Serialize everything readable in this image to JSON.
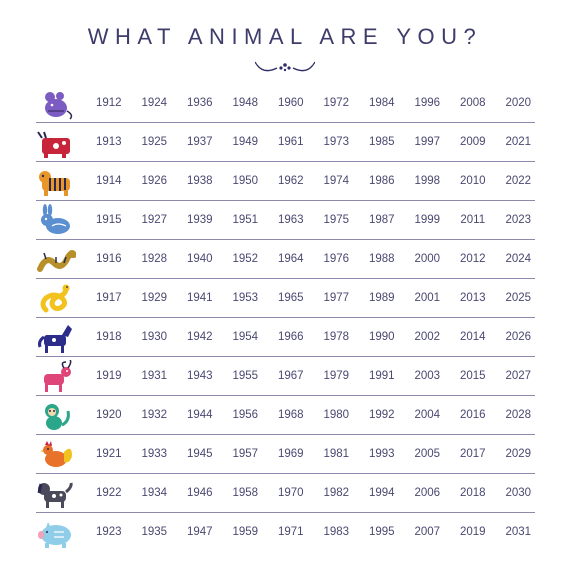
{
  "title": "WHAT ANIMAL ARE YOU?",
  "colors": {
    "title": "#3e3c6a",
    "text": "#4a4870",
    "divider": "#8c8aa8",
    "ornament": "#2f2d68"
  },
  "rows": [
    {
      "animal": "rat-icon",
      "color": "#7c5cc2",
      "years": [
        "1912",
        "1924",
        "1936",
        "1948",
        "1960",
        "1972",
        "1984",
        "1996",
        "2008",
        "2020"
      ]
    },
    {
      "animal": "ox-icon",
      "color": "#c8243a",
      "years": [
        "1913",
        "1925",
        "1937",
        "1949",
        "1961",
        "1973",
        "1985",
        "1997",
        "2009",
        "2021"
      ]
    },
    {
      "animal": "tiger-icon",
      "color": "#e8962a",
      "years": [
        "1914",
        "1926",
        "1938",
        "1950",
        "1962",
        "1974",
        "1986",
        "1998",
        "2010",
        "2022"
      ]
    },
    {
      "animal": "rabbit-icon",
      "color": "#5b8fd0",
      "years": [
        "1915",
        "1927",
        "1939",
        "1951",
        "1963",
        "1975",
        "1987",
        "1999",
        "2011",
        "2023"
      ]
    },
    {
      "animal": "dragon-icon",
      "color": "#b8902a",
      "years": [
        "1916",
        "1928",
        "1940",
        "1952",
        "1964",
        "1976",
        "1988",
        "2000",
        "2012",
        "2024"
      ]
    },
    {
      "animal": "snake-icon",
      "color": "#f2c21e",
      "years": [
        "1917",
        "1929",
        "1941",
        "1953",
        "1965",
        "1977",
        "1989",
        "2001",
        "2013",
        "2025"
      ]
    },
    {
      "animal": "horse-icon",
      "color": "#2c2c8a",
      "years": [
        "1918",
        "1930",
        "1942",
        "1954",
        "1966",
        "1978",
        "1990",
        "2002",
        "2014",
        "2026"
      ]
    },
    {
      "animal": "goat-icon",
      "color": "#e0457a",
      "years": [
        "1919",
        "1931",
        "1943",
        "1955",
        "1967",
        "1979",
        "1991",
        "2003",
        "2015",
        "2027"
      ]
    },
    {
      "animal": "monkey-icon",
      "color": "#2aa68a",
      "years": [
        "1920",
        "1932",
        "1944",
        "1956",
        "1968",
        "1980",
        "1992",
        "2004",
        "2016",
        "2028"
      ]
    },
    {
      "animal": "rooster-icon",
      "color": "#e8722a",
      "years": [
        "1921",
        "1933",
        "1945",
        "1957",
        "1969",
        "1981",
        "1993",
        "2005",
        "2017",
        "2029"
      ]
    },
    {
      "animal": "dog-icon",
      "color": "#4a4a5a",
      "years": [
        "1922",
        "1934",
        "1946",
        "1958",
        "1970",
        "1982",
        "1994",
        "2006",
        "2018",
        "2030"
      ]
    },
    {
      "animal": "pig-icon",
      "color": "#8fcde8",
      "years": [
        "1923",
        "1935",
        "1947",
        "1959",
        "1971",
        "1983",
        "1995",
        "2007",
        "2019",
        "2031"
      ]
    }
  ]
}
